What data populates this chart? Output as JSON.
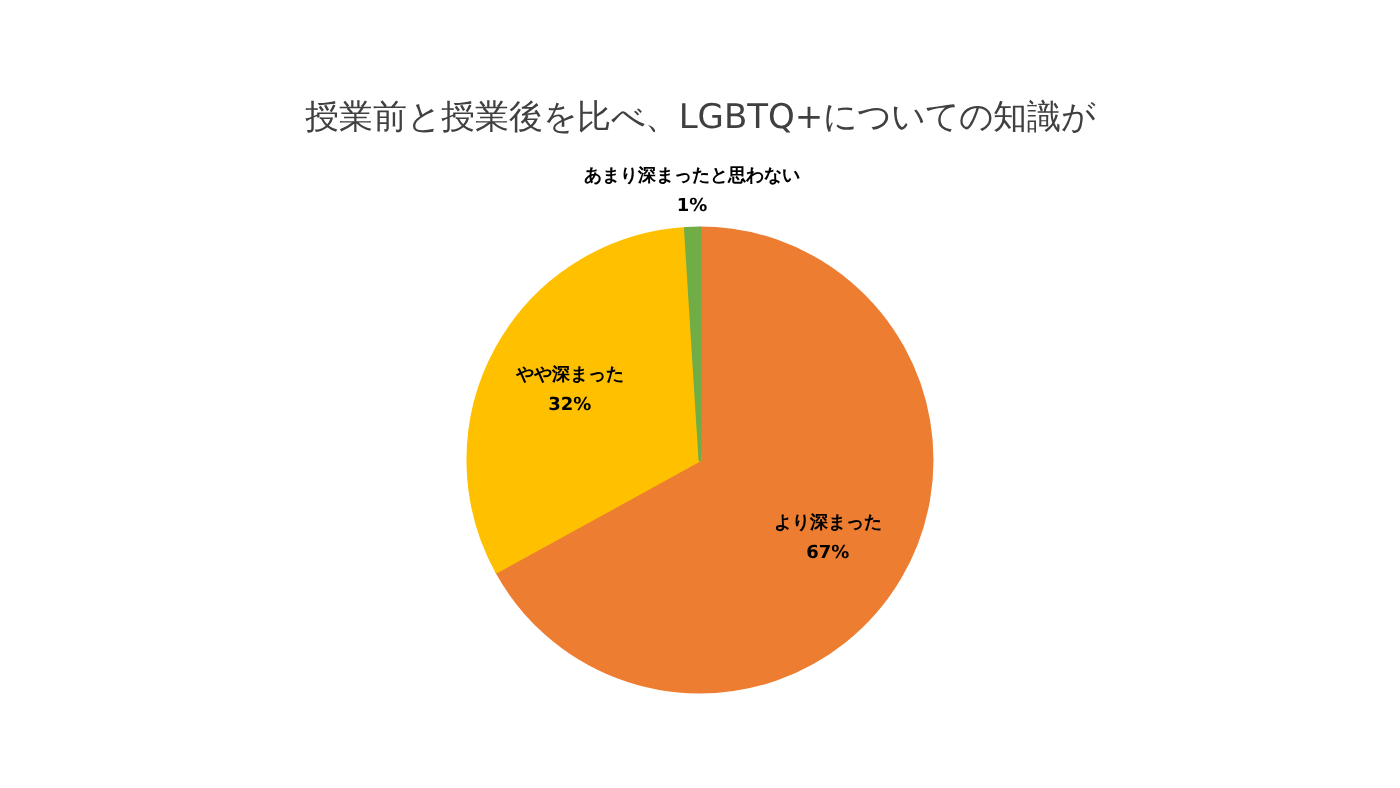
{
  "chart_data": {
    "type": "pie",
    "title": "授業前と授業後を比べ、LGBTQ+についての知識が",
    "categories": [
      "より深まった",
      "やや深まった",
      "あまり深まったと思わない"
    ],
    "values": [
      67,
      32,
      1
    ],
    "value_labels": [
      "67%",
      "32%",
      "1%"
    ],
    "colors": [
      "#ed7d31",
      "#ffc000",
      "#70ad47"
    ]
  }
}
